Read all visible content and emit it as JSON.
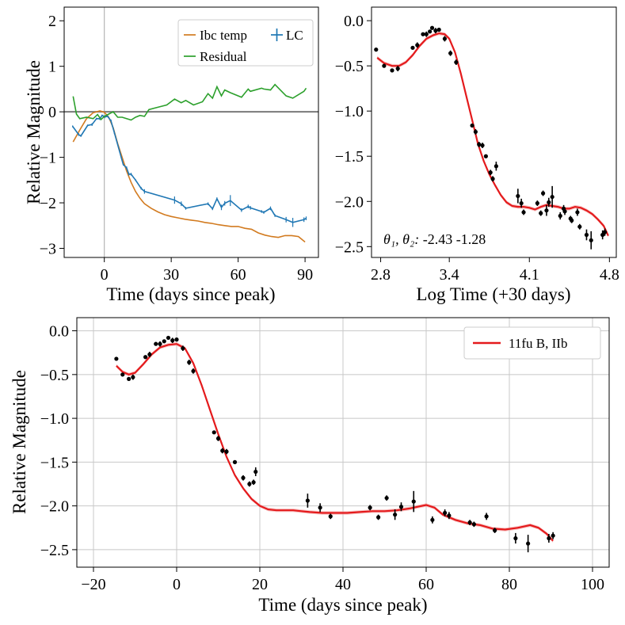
{
  "chart_data": [
    {
      "id": "top-left",
      "type": "line",
      "xlabel": "Time (days since peak)",
      "ylabel": "Relative Magnitude",
      "xlim": [
        -18,
        96
      ],
      "ylim": [
        -3.2,
        2.3
      ],
      "xticks": [
        0,
        30,
        60,
        90
      ],
      "yticks": [
        2,
        1,
        0,
        -1,
        -2,
        -3
      ],
      "legend": {
        "position": "top-right",
        "entries": [
          "Ibc temp",
          "LC",
          "Residual"
        ]
      },
      "reference_lines": {
        "hline": 0,
        "vline": 0
      },
      "series": [
        {
          "name": "Ibc temp",
          "color": "#d27b20",
          "x": [
            -14,
            -11,
            -8,
            -5,
            -2,
            0,
            2,
            4,
            6,
            8,
            10,
            12,
            14,
            16,
            18,
            21,
            24,
            27,
            30,
            33,
            36,
            39,
            42,
            45,
            48,
            51,
            54,
            57,
            60,
            63,
            66,
            69,
            72,
            75,
            78,
            81,
            84,
            87,
            90
          ],
          "y": [
            -0.66,
            -0.4,
            -0.15,
            -0.02,
            0.02,
            -0.01,
            -0.12,
            -0.35,
            -0.7,
            -1.0,
            -1.3,
            -1.55,
            -1.75,
            -1.9,
            -2.02,
            -2.12,
            -2.2,
            -2.26,
            -2.3,
            -2.33,
            -2.36,
            -2.38,
            -2.4,
            -2.43,
            -2.45,
            -2.48,
            -2.5,
            -2.52,
            -2.52,
            -2.56,
            -2.58,
            -2.66,
            -2.71,
            -2.74,
            -2.76,
            -2.72,
            -2.72,
            -2.74,
            -2.86
          ]
        },
        {
          "name": "LC",
          "color": "#1f77b4",
          "x": [
            -14.2,
            -11.5,
            -10.5,
            -7.5,
            -5.5,
            -3.5,
            -2,
            -1,
            0.2,
            1.5,
            3,
            4.5,
            8.5,
            10,
            11,
            12,
            14,
            16.5,
            18,
            31.5,
            34.5,
            36.5,
            46.5,
            48.5,
            50.5,
            52.5,
            54,
            56.5,
            61.5,
            64.5,
            65.5,
            70.5,
            71.5,
            74.5,
            76.5,
            81.5,
            84.5,
            89.5,
            90.5
          ],
          "y": [
            -0.32,
            -0.5,
            -0.53,
            -0.3,
            -0.28,
            -0.15,
            -0.15,
            -0.08,
            -0.11,
            -0.1,
            -0.2,
            -0.46,
            -1.16,
            -1.23,
            -1.37,
            -1.37,
            -1.5,
            -1.68,
            -1.75,
            -1.94,
            -2.02,
            -2.12,
            -2.02,
            -2.13,
            -1.91,
            -2.1,
            -2.01,
            -1.95,
            -2.16,
            -2.08,
            -2.11,
            -2.19,
            -2.21,
            -2.12,
            -2.28,
            -2.37,
            -2.43,
            -2.37,
            -2.34
          ],
          "err": [
            0.02,
            0.03,
            0.02,
            0.02,
            0.03,
            0.02,
            0.03,
            0.02,
            0.03,
            0.02,
            0.03,
            0.03,
            0.02,
            0.03,
            0.03,
            0.03,
            0.02,
            0.03,
            0.05,
            0.08,
            0.05,
            0.03,
            0.03,
            0.03,
            0.03,
            0.06,
            0.05,
            0.12,
            0.04,
            0.04,
            0.04,
            0.03,
            0.03,
            0.04,
            0.03,
            0.06,
            0.1,
            0.05,
            0.04
          ]
        },
        {
          "name": "Residual",
          "color": "#2ca02c",
          "x": [
            -14,
            -12.5,
            -11,
            -8,
            -5,
            -3,
            -1.5,
            0,
            2,
            4,
            6,
            8,
            10,
            12,
            14,
            16,
            18,
            20,
            24,
            28,
            31.5,
            34.5,
            36.5,
            40,
            44,
            46.5,
            48.5,
            50.5,
            52.5,
            54,
            56.5,
            61.5,
            64.5,
            65.5,
            70.5,
            71.5,
            74.5,
            76.5,
            81.5,
            84.5,
            89.5,
            90.5
          ],
          "y": [
            0.34,
            -0.05,
            -0.15,
            -0.12,
            -0.15,
            -0.06,
            -0.17,
            -0.1,
            -0.05,
            0.0,
            -0.12,
            -0.12,
            -0.15,
            -0.18,
            -0.12,
            -0.08,
            -0.1,
            0.05,
            0.1,
            0.15,
            0.28,
            0.2,
            0.25,
            0.15,
            0.22,
            0.4,
            0.3,
            0.55,
            0.35,
            0.48,
            0.42,
            0.32,
            0.5,
            0.45,
            0.52,
            0.5,
            0.48,
            0.6,
            0.35,
            0.3,
            0.45,
            0.52
          ]
        }
      ]
    },
    {
      "id": "top-right",
      "type": "scatter",
      "xlabel": "Log Time (+30 days)",
      "ylabel": "",
      "xlim": [
        2.72,
        4.86
      ],
      "ylim": [
        -2.62,
        0.15
      ],
      "xticks": [
        2.8,
        3.4,
        4.1,
        4.8
      ],
      "yticks": [
        0.0,
        -0.5,
        -1.0,
        -1.5,
        -2.0,
        -2.5
      ],
      "annotation_prefix": "θ₁, θ₂: ",
      "annotation_values": "-2.43 -1.28",
      "fit": {
        "color": "#e41a1c",
        "x": [
          2.77,
          2.83,
          2.9,
          2.96,
          3.02,
          3.08,
          3.14,
          3.2,
          3.26,
          3.31,
          3.36,
          3.4,
          3.45,
          3.5,
          3.55,
          3.6,
          3.65,
          3.7,
          3.75,
          3.8,
          3.85,
          3.9,
          3.95,
          4.0,
          4.05,
          4.1,
          4.15,
          4.2,
          4.25,
          4.3,
          4.35,
          4.4,
          4.45,
          4.5,
          4.55,
          4.6,
          4.65,
          4.7,
          4.75,
          4.79
        ],
        "y": [
          -0.41,
          -0.47,
          -0.5,
          -0.5,
          -0.46,
          -0.38,
          -0.28,
          -0.2,
          -0.16,
          -0.14,
          -0.15,
          -0.2,
          -0.35,
          -0.58,
          -0.84,
          -1.1,
          -1.36,
          -1.55,
          -1.7,
          -1.82,
          -1.93,
          -2.01,
          -2.05,
          -2.06,
          -2.06,
          -2.07,
          -2.09,
          -2.06,
          -2.04,
          -2.05,
          -2.06,
          -2.08,
          -2.08,
          -2.06,
          -2.07,
          -2.1,
          -2.14,
          -2.2,
          -2.27,
          -2.38
        ]
      },
      "points": {
        "x": [
          2.76,
          2.83,
          2.9,
          2.95,
          3.08,
          3.12,
          3.17,
          3.2,
          3.23,
          3.25,
          3.28,
          3.31,
          3.36,
          3.41,
          3.46,
          3.6,
          3.63,
          3.66,
          3.69,
          3.72,
          3.76,
          3.78,
          3.81,
          4.0,
          4.03,
          4.05,
          4.17,
          4.2,
          4.22,
          4.25,
          4.27,
          4.3,
          4.37,
          4.4,
          4.41,
          4.46,
          4.47,
          4.52,
          4.54,
          4.6,
          4.64,
          4.74,
          4.76
        ],
        "y": [
          -0.32,
          -0.5,
          -0.55,
          -0.53,
          -0.3,
          -0.27,
          -0.15,
          -0.15,
          -0.12,
          -0.08,
          -0.11,
          -0.1,
          -0.2,
          -0.36,
          -0.46,
          -1.16,
          -1.23,
          -1.37,
          -1.38,
          -1.5,
          -1.68,
          -1.75,
          -1.61,
          -1.94,
          -2.02,
          -2.12,
          -2.02,
          -2.13,
          -1.91,
          -2.1,
          -2.01,
          -1.95,
          -2.16,
          -2.08,
          -2.11,
          -2.19,
          -2.21,
          -2.12,
          -2.28,
          -2.37,
          -2.43,
          -2.37,
          -2.34
        ],
        "err": [
          0.02,
          0.02,
          0.02,
          0.03,
          0.02,
          0.03,
          0.02,
          0.03,
          0.02,
          0.02,
          0.03,
          0.02,
          0.03,
          0.03,
          0.03,
          0.02,
          0.03,
          0.03,
          0.03,
          0.02,
          0.03,
          0.03,
          0.05,
          0.08,
          0.05,
          0.03,
          0.03,
          0.03,
          0.03,
          0.06,
          0.05,
          0.12,
          0.04,
          0.04,
          0.04,
          0.03,
          0.03,
          0.04,
          0.03,
          0.06,
          0.1,
          0.05,
          0.04
        ]
      }
    },
    {
      "id": "bottom",
      "type": "scatter",
      "xlabel": "Time (days since peak)",
      "ylabel": "Relative Magnitude",
      "xlim": [
        -24,
        104
      ],
      "ylim": [
        -2.7,
        0.15
      ],
      "xticks": [
        -20,
        0,
        20,
        40,
        60,
        80,
        100
      ],
      "yticks": [
        0.0,
        -0.5,
        -1.0,
        -1.5,
        -2.0,
        -2.5
      ],
      "grid": true,
      "legend": {
        "position": "top-right",
        "entries": [
          "11fu B, IIb"
        ]
      },
      "fit": {
        "name": "11fu B, IIb",
        "color": "#e41a1c",
        "x": [
          -14.5,
          -13,
          -11.5,
          -10,
          -8,
          -6,
          -4,
          -2,
          0,
          2,
          4,
          6,
          8,
          10,
          12,
          14,
          16,
          18,
          20,
          22,
          24,
          26,
          28,
          30,
          32,
          35,
          38,
          41,
          44,
          47,
          50,
          53,
          56,
          58,
          60,
          62,
          64,
          67,
          70,
          73,
          76,
          79,
          82,
          85,
          87,
          89,
          90.5
        ],
        "y": [
          -0.4,
          -0.47,
          -0.5,
          -0.48,
          -0.38,
          -0.27,
          -0.19,
          -0.16,
          -0.15,
          -0.2,
          -0.37,
          -0.62,
          -0.9,
          -1.18,
          -1.44,
          -1.65,
          -1.8,
          -1.92,
          -2.0,
          -2.04,
          -2.05,
          -2.05,
          -2.05,
          -2.06,
          -2.07,
          -2.08,
          -2.08,
          -2.08,
          -2.07,
          -2.06,
          -2.06,
          -2.05,
          -2.03,
          -2.01,
          -1.99,
          -2.02,
          -2.1,
          -2.16,
          -2.2,
          -2.22,
          -2.26,
          -2.27,
          -2.25,
          -2.22,
          -2.25,
          -2.32,
          -2.4
        ]
      },
      "points": {
        "x": [
          -14.5,
          -13,
          -11.5,
          -10.5,
          -7.5,
          -6.5,
          -5,
          -4,
          -3,
          -2,
          -1,
          0,
          1.5,
          3,
          4,
          9,
          10,
          11,
          12,
          14,
          16,
          17.5,
          18.5,
          19,
          31.5,
          34.5,
          37,
          46.5,
          48.5,
          50.5,
          52.5,
          54,
          57,
          61.5,
          64.5,
          65.5,
          70.5,
          71.5,
          74.5,
          76.5,
          81.5,
          84.5,
          89.5,
          90.5
        ],
        "y": [
          -0.32,
          -0.5,
          -0.55,
          -0.53,
          -0.3,
          -0.27,
          -0.15,
          -0.15,
          -0.12,
          -0.08,
          -0.11,
          -0.1,
          -0.2,
          -0.36,
          -0.46,
          -1.16,
          -1.23,
          -1.37,
          -1.38,
          -1.5,
          -1.68,
          -1.75,
          -1.73,
          -1.61,
          -1.94,
          -2.02,
          -2.12,
          -2.02,
          -2.13,
          -1.91,
          -2.1,
          -2.01,
          -1.95,
          -2.16,
          -2.08,
          -2.11,
          -2.19,
          -2.21,
          -2.12,
          -2.28,
          -2.37,
          -2.43,
          -2.37,
          -2.34
        ],
        "err": [
          0.02,
          0.02,
          0.02,
          0.03,
          0.02,
          0.03,
          0.02,
          0.03,
          0.02,
          0.02,
          0.03,
          0.02,
          0.03,
          0.03,
          0.03,
          0.02,
          0.03,
          0.03,
          0.03,
          0.02,
          0.03,
          0.03,
          0.03,
          0.05,
          0.08,
          0.05,
          0.03,
          0.03,
          0.03,
          0.03,
          0.06,
          0.05,
          0.12,
          0.04,
          0.04,
          0.04,
          0.03,
          0.03,
          0.04,
          0.03,
          0.06,
          0.1,
          0.05,
          0.04
        ]
      }
    }
  ]
}
